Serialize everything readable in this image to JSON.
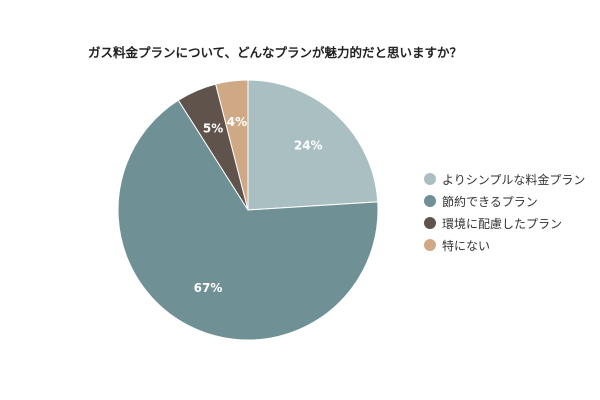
{
  "chart_data": {
    "type": "pie",
    "title": "ガス料金プランについて、どんなプランが魅力的だと思いますか？",
    "categories": [
      "よりシンプルな料金プラン",
      "節約できるプラン",
      "環境に配慮したプラン",
      "特にない"
    ],
    "values": [
      24,
      67,
      5,
      4
    ],
    "labels": [
      "24%",
      "67%",
      "5%",
      "4%"
    ],
    "colors": [
      "#a9bfc1",
      "#6f9195",
      "#5f534b",
      "#cfa985"
    ],
    "legend_position": "right"
  }
}
